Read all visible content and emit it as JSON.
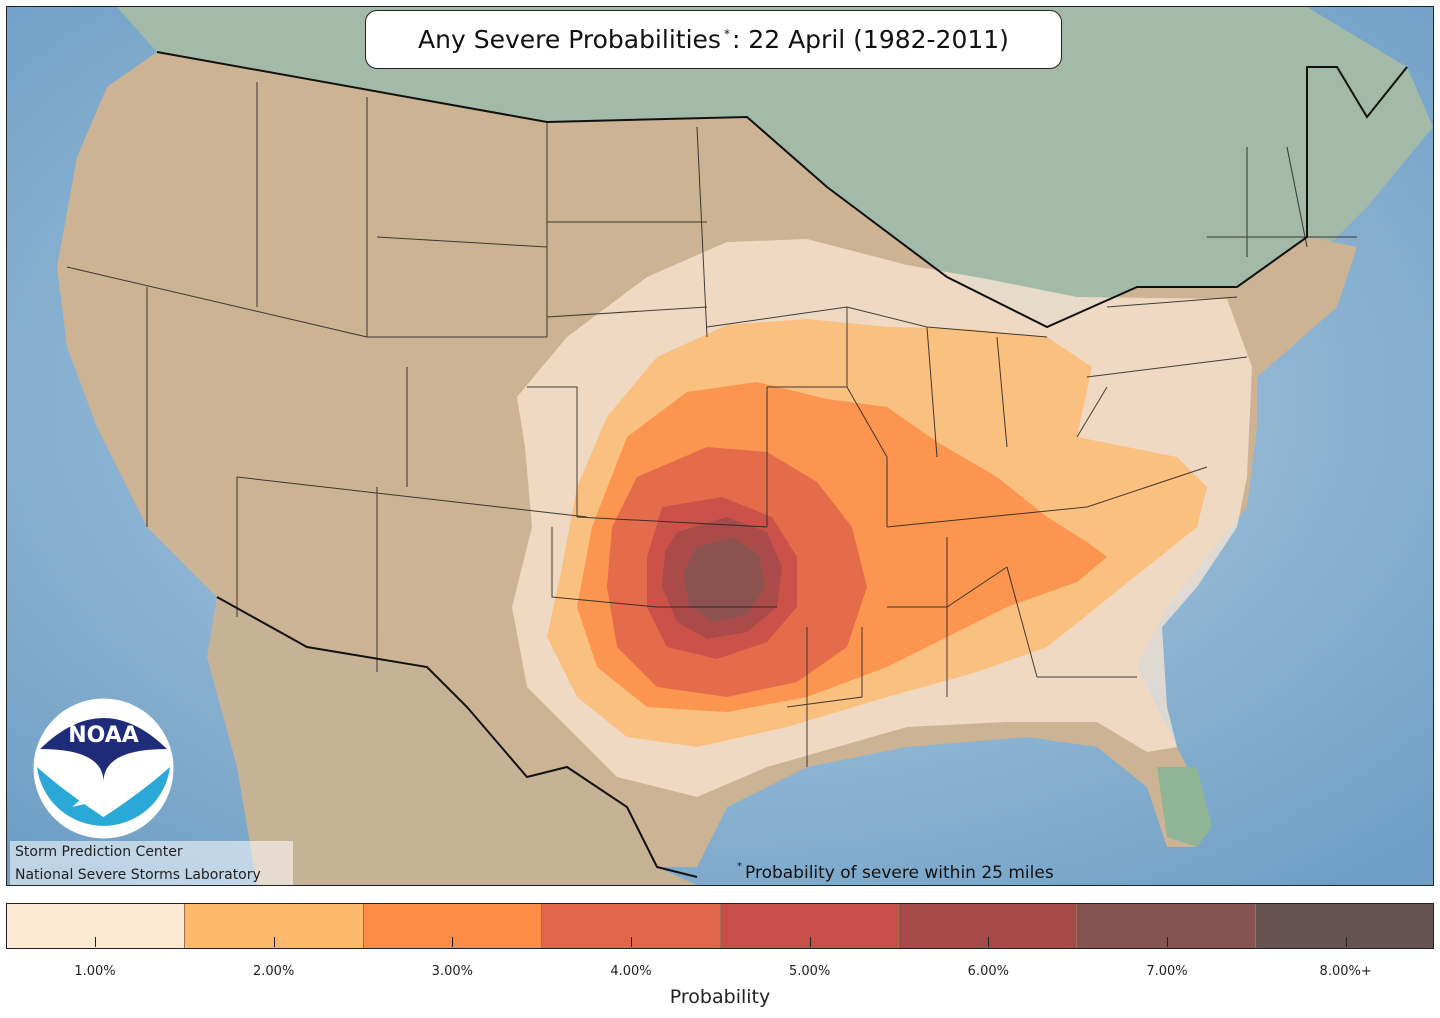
{
  "title": {
    "main": "Any Severe Probabilities",
    "star": "*",
    "rest": ": 22 April (1982-2011)"
  },
  "footnote": {
    "star": "*",
    "text": "Probability of severe within 25 miles"
  },
  "credits": {
    "line1": "Storm Prediction Center",
    "line2": "National Severe Storms Laboratory"
  },
  "logo": {
    "text": "NOAA",
    "colors": {
      "navy": "#1f2c7a",
      "cyan": "#2aa9d8",
      "white": "#ffffff"
    }
  },
  "colorbar": {
    "title": "Probability",
    "bins": [
      {
        "label": "1.00%",
        "color": "#fde8d4"
      },
      {
        "label": "2.00%",
        "color": "#fdb96b"
      },
      {
        "label": "3.00%",
        "color": "#fb8b45"
      },
      {
        "label": "4.00%",
        "color": "#e0654a"
      },
      {
        "label": "5.00%",
        "color": "#c84e49"
      },
      {
        "label": "6.00%",
        "color": "#a64a49"
      },
      {
        "label": "7.00%",
        "color": "#855452"
      },
      {
        "label": "8.00%+",
        "color": "#675252"
      }
    ]
  },
  "map_colors": {
    "ocean": "#8fb6d2",
    "land": "#cbb393",
    "canada": "#a4baa8",
    "border": "#111111"
  }
}
